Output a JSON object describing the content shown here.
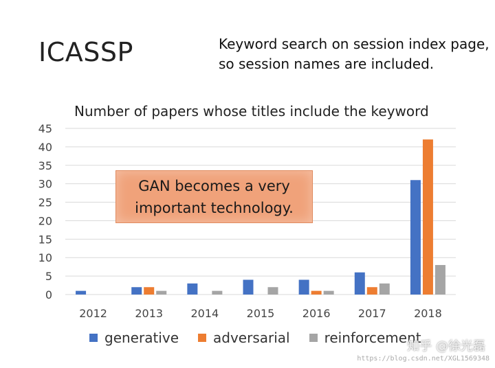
{
  "slide": {
    "title": "ICASSP",
    "note_lines": [
      "Keyword search on session index page,",
      "so session names are included."
    ]
  },
  "callout": {
    "lines": [
      "GAN becomes a very",
      "important technology."
    ]
  },
  "colors": {
    "generative": "#4472C4",
    "adversarial": "#ED7D31",
    "reinforcement": "#A5A5A5",
    "callout_fill": "#F0A27A",
    "gridline": "#d9d9d9"
  },
  "chart_data": {
    "type": "bar",
    "title": "Number of papers whose titles include the keyword",
    "xlabel": "",
    "ylabel": "",
    "categories": [
      "2012",
      "2013",
      "2014",
      "2015",
      "2016",
      "2017",
      "2018"
    ],
    "ylim": [
      0,
      45
    ],
    "yticks": [
      0,
      5,
      10,
      15,
      20,
      25,
      30,
      35,
      40,
      45
    ],
    "grid": true,
    "legend_position": "bottom",
    "series": [
      {
        "name": "generative",
        "values": [
          1,
          2,
          3,
          4,
          4,
          6,
          31
        ]
      },
      {
        "name": "adversarial",
        "values": [
          0,
          2,
          0,
          0,
          1,
          2,
          42
        ]
      },
      {
        "name": "reinforcement",
        "values": [
          0,
          1,
          1,
          2,
          1,
          3,
          8
        ]
      }
    ]
  },
  "watermark": {
    "text": "知乎 @徐光磊",
    "url": "https://blog.csdn.net/XGL1569348"
  }
}
